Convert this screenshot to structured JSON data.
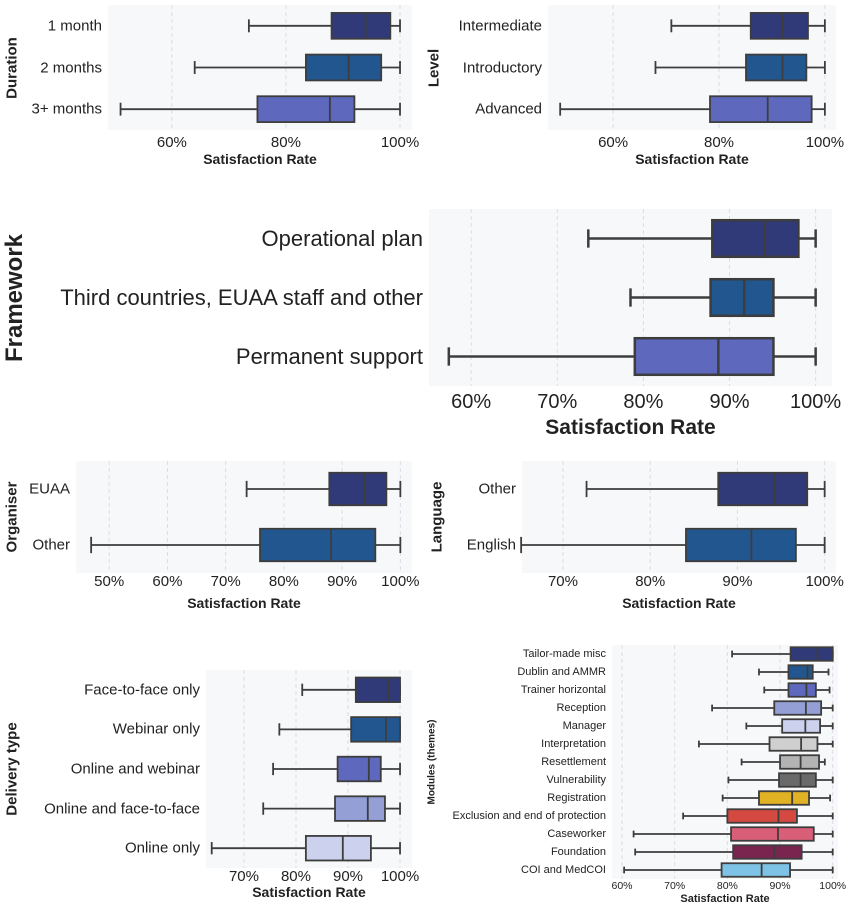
{
  "colors": {
    "navy": "#313a78",
    "blue": "#22568f",
    "periwinkle": "#5e68bd",
    "lavender": "#949fd6",
    "pale": "#ccd1ee",
    "lightgray": "#cfcfcf",
    "gray": "#b3b3b3",
    "darkgray": "#6a6a6a",
    "yellow": "#e0b224",
    "red": "#d44a40",
    "pink": "#d95f78",
    "plum": "#7a2550",
    "skyblue": "#7ec3e6"
  },
  "chart_data": [
    {
      "id": "duration",
      "type": "boxplot",
      "orientation": "horizontal",
      "ylabel": "Duration",
      "xlabel": "Satisfaction Rate",
      "xlim": [
        48.8,
        102.1
      ],
      "xticks": [
        60,
        80,
        100
      ],
      "tick_labels": [
        "60%",
        "80%",
        "100%"
      ],
      "grid": "dashed vertical",
      "categories": [
        "1 month",
        "2 months",
        "3+ months"
      ],
      "boxes": [
        {
          "min": 73.5,
          "q1": 88,
          "median": 94,
          "q3": 98.3,
          "max": 100,
          "color": "#313a78"
        },
        {
          "min": 64,
          "q1": 83.5,
          "median": 91,
          "q3": 96.7,
          "max": 100,
          "color": "#22568f"
        },
        {
          "min": 51,
          "q1": 75,
          "median": 87.7,
          "q3": 92,
          "max": 100,
          "color": "#5e68bd"
        }
      ]
    },
    {
      "id": "level",
      "type": "boxplot",
      "orientation": "horizontal",
      "ylabel": "Level",
      "xlabel": "Satisfaction Rate",
      "xlim": [
        47.7,
        102.1
      ],
      "xticks": [
        60,
        80,
        100
      ],
      "tick_labels": [
        "60%",
        "80%",
        "100%"
      ],
      "grid": "dashed vertical",
      "categories": [
        "Intermediate",
        "Introductory",
        "Advanced"
      ],
      "boxes": [
        {
          "min": 71,
          "q1": 86,
          "median": 92,
          "q3": 96.8,
          "max": 100,
          "color": "#313a78"
        },
        {
          "min": 68,
          "q1": 85.1,
          "median": 92,
          "q3": 96.5,
          "max": 100,
          "color": "#22568f"
        },
        {
          "min": 50,
          "q1": 78.3,
          "median": 89.2,
          "q3": 97.5,
          "max": 100,
          "color": "#5e68bd"
        }
      ]
    },
    {
      "id": "framework",
      "type": "boxplot",
      "orientation": "horizontal",
      "ylabel": "Framework",
      "xlabel": "Satisfaction Rate",
      "xlim": [
        55.1,
        101.9
      ],
      "xticks": [
        60,
        70,
        80,
        90,
        100
      ],
      "tick_labels": [
        "60%",
        "70%",
        "80%",
        "90%",
        "100%"
      ],
      "grid": "dashed vertical",
      "categories": [
        "Operational plan",
        "Third countries, EUAA staff and other",
        "Permanent support"
      ],
      "boxes": [
        {
          "min": 73.6,
          "q1": 88,
          "median": 94.1,
          "q3": 98,
          "max": 100,
          "color": "#313a78"
        },
        {
          "min": 78.5,
          "q1": 87.8,
          "median": 91.7,
          "q3": 95.1,
          "max": 100,
          "color": "#22568f"
        },
        {
          "min": 57.4,
          "q1": 79,
          "median": 88.7,
          "q3": 95.1,
          "max": 100,
          "color": "#5e68bd"
        }
      ]
    },
    {
      "id": "organiser",
      "type": "boxplot",
      "orientation": "horizontal",
      "ylabel": "Organiser",
      "xlabel": "Satisfaction Rate",
      "xlim": [
        44.3,
        102
      ],
      "xticks": [
        50,
        60,
        70,
        80,
        90,
        100
      ],
      "tick_labels": [
        "50%",
        "60%",
        "70%",
        "80%",
        "90%",
        "100%"
      ],
      "grid": "dashed vertical",
      "categories": [
        "EUAA",
        "Other"
      ],
      "boxes": [
        {
          "min": 73.6,
          "q1": 87.8,
          "median": 93.8,
          "q3": 97.6,
          "max": 100,
          "color": "#313a78"
        },
        {
          "min": 46.9,
          "q1": 75.9,
          "median": 88.1,
          "q3": 95.7,
          "max": 100,
          "color": "#22568f"
        }
      ]
    },
    {
      "id": "language",
      "type": "boxplot",
      "orientation": "horizontal",
      "ylabel": "Language",
      "xlabel": "Satisfaction Rate",
      "xlim": [
        65.3,
        101.3
      ],
      "xticks": [
        70,
        80,
        90,
        100
      ],
      "tick_labels": [
        "70%",
        "80%",
        "90%",
        "100%"
      ],
      "grid": "dashed vertical",
      "categories": [
        "Other",
        "English"
      ],
      "boxes": [
        {
          "min": 72.7,
          "q1": 87.8,
          "median": 94.2,
          "q3": 98,
          "max": 100,
          "color": "#313a78"
        },
        {
          "min": 65.2,
          "q1": 84.1,
          "median": 91.6,
          "q3": 96.7,
          "max": 100,
          "color": "#22568f"
        }
      ]
    },
    {
      "id": "delivery",
      "type": "boxplot",
      "orientation": "horizontal",
      "ylabel": "Delivery type",
      "xlabel": "Satisfaction Rate",
      "xlim": [
        62.7,
        102.3
      ],
      "xticks": [
        70,
        80,
        90,
        100
      ],
      "tick_labels": [
        "70%",
        "80%",
        "90%",
        "100%"
      ],
      "grid": "dashed vertical",
      "categories": [
        "Face-to-face only",
        "Webinar only",
        "Online and webinar",
        "Online and face-to-face",
        "Online only"
      ],
      "boxes": [
        {
          "min": 81.2,
          "q1": 91.5,
          "median": 97.7,
          "q3": 100,
          "max": 100,
          "color": "#313a78"
        },
        {
          "min": 76.8,
          "q1": 90.6,
          "median": 97.3,
          "q3": 100,
          "max": 100,
          "color": "#22568f"
        },
        {
          "min": 75.6,
          "q1": 88,
          "median": 94,
          "q3": 96.3,
          "max": 100,
          "color": "#5e68bd"
        },
        {
          "min": 73.7,
          "q1": 87.5,
          "median": 93.8,
          "q3": 97.1,
          "max": 100,
          "color": "#949fd6"
        },
        {
          "min": 63.8,
          "q1": 81.9,
          "median": 89,
          "q3": 94.4,
          "max": 100,
          "color": "#ccd1ee"
        }
      ]
    },
    {
      "id": "modules",
      "type": "boxplot",
      "orientation": "horizontal",
      "ylabel": "Modules (themes)",
      "xlabel": "Satisfaction Rate",
      "xlim": [
        58.1,
        101
      ],
      "xticks": [
        60,
        70,
        80,
        90,
        100
      ],
      "tick_labels": [
        "60%",
        "70%",
        "80%",
        "90%",
        "100%"
      ],
      "grid": "dashed vertical",
      "categories": [
        "Tailor-made misc",
        "Dublin and AMMR",
        "Trainer horizontal",
        "Reception",
        "Manager",
        "Interpretation",
        "Resettlement",
        "Vulnerability",
        "Registration",
        "Exclusion and end of protection",
        "Caseworker",
        "Foundation",
        "COI and MedCOI"
      ],
      "boxes": [
        {
          "min": 80.9,
          "q1": 92,
          "median": 97.1,
          "q3": 100,
          "max": 100,
          "color": "#313a78"
        },
        {
          "min": 86,
          "q1": 91.6,
          "median": 95.2,
          "q3": 96.2,
          "max": 99.2,
          "color": "#22568f"
        },
        {
          "min": 87,
          "q1": 91.6,
          "median": 95,
          "q3": 96.8,
          "max": 99.4,
          "color": "#5e68bd"
        },
        {
          "min": 77.1,
          "q1": 88.9,
          "median": 94.9,
          "q3": 97.8,
          "max": 100,
          "color": "#949fd6"
        },
        {
          "min": 83.6,
          "q1": 90.4,
          "median": 94.8,
          "q3": 97.6,
          "max": 100,
          "color": "#ccd1ee"
        },
        {
          "min": 74.6,
          "q1": 88,
          "median": 94,
          "q3": 97.1,
          "max": 100,
          "color": "#cfcfcf"
        },
        {
          "min": 82.7,
          "q1": 90,
          "median": 93.9,
          "q3": 97.4,
          "max": 98.5,
          "color": "#b3b3b3"
        },
        {
          "min": 80.2,
          "q1": 89.8,
          "median": 93.9,
          "q3": 96.8,
          "max": 100,
          "color": "#6a6a6a"
        },
        {
          "min": 79.1,
          "q1": 86,
          "median": 92.3,
          "q3": 95.5,
          "max": 99.5,
          "color": "#e0b224"
        },
        {
          "min": 71.6,
          "q1": 80,
          "median": 89.7,
          "q3": 93.2,
          "max": 100,
          "color": "#d44a40"
        },
        {
          "min": 62.2,
          "q1": 80.7,
          "median": 89.6,
          "q3": 96.4,
          "max": 100,
          "color": "#d95f78"
        },
        {
          "min": 62.5,
          "q1": 81.1,
          "median": 88.9,
          "q3": 94.1,
          "max": 100,
          "color": "#7a2550"
        },
        {
          "min": 60.4,
          "q1": 78.9,
          "median": 86.5,
          "q3": 91.9,
          "max": 100,
          "color": "#7ec3e6"
        }
      ]
    }
  ]
}
